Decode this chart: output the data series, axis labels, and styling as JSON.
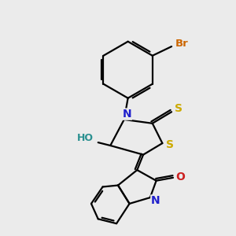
{
  "bg_color": "#ebebeb",
  "atom_colors": {
    "C": "#000000",
    "N": "#2020cc",
    "O": "#cc2020",
    "S": "#ccaa00",
    "Br": "#cc6600",
    "H": "#000000",
    "HO": "#2a9090"
  },
  "figsize": [
    3.0,
    3.0
  ],
  "dpi": 100
}
